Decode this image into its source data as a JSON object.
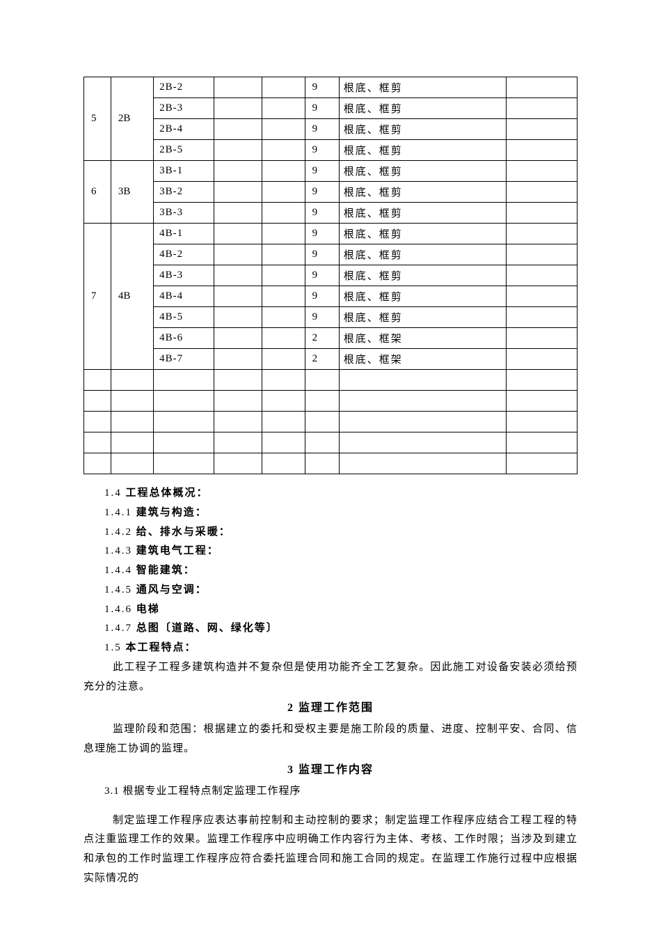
{
  "table": {
    "groups": [
      {
        "idx": "5",
        "group": "2B",
        "rows": [
          {
            "code": "2B-2",
            "num": "9",
            "desc": "根底、框剪"
          },
          {
            "code": "2B-3",
            "num": "9",
            "desc": "根底、框剪"
          },
          {
            "code": "2B-4",
            "num": "9",
            "desc": "根底、框剪"
          },
          {
            "code": "2B-5",
            "num": "9",
            "desc": "根底、框剪"
          }
        ]
      },
      {
        "idx": "6",
        "group": "3B",
        "rows": [
          {
            "code": "3B-1",
            "num": "9",
            "desc": "根底、框剪"
          },
          {
            "code": "3B-2",
            "num": "9",
            "desc": "根底、框剪"
          },
          {
            "code": "3B-3",
            "num": "9",
            "desc": "根底、框剪"
          }
        ]
      },
      {
        "idx": "7",
        "group": "4B",
        "rows": [
          {
            "code": "4B-1",
            "num": "9",
            "desc": "根底、框剪"
          },
          {
            "code": "4B-2",
            "num": "9",
            "desc": "根底、框剪"
          },
          {
            "code": "4B-3",
            "num": "9",
            "desc": "根底、框剪"
          },
          {
            "code": "4B-4",
            "num": "9",
            "desc": "根底、框剪"
          },
          {
            "code": "4B-5",
            "num": "9",
            "desc": "根底、框剪"
          },
          {
            "code": "4B-6",
            "num": "2",
            "desc": "根底、框架"
          },
          {
            "code": "4B-7",
            "num": "2",
            "desc": "根底、框架"
          }
        ]
      }
    ],
    "empty_rows": 5
  },
  "sections": {
    "s14": {
      "num": "1.4",
      "title": "工程总体概况："
    },
    "s141": {
      "num": "1.4.1",
      "title": "建筑与构造："
    },
    "s142": {
      "num": "1.4.2",
      "title": "给、排水与采暖："
    },
    "s143": {
      "num": "1.4.3",
      "title": "建筑电气工程："
    },
    "s144": {
      "num": "1.4.4",
      "title": "智能建筑："
    },
    "s145": {
      "num": "1.4.5",
      "title": "通风与空调："
    },
    "s146": {
      "num": "1.4.6",
      "title": "电梯"
    },
    "s147": {
      "num": "1.4.7",
      "title": "总图〔道路、网、绿化等〕"
    },
    "s15": {
      "num": "1.5",
      "title": "本工程特点："
    },
    "p15": "此工程子工程多建筑构造并不复杂但是使用功能齐全工艺复杂。因此施工对设备安装必须给预充分的注意。",
    "h2": "2  监理工作范围",
    "p2": "监理阶段和范围：根据建立的委托和受权主要是施工阶段的质量、进度、控制平安、合同、信息理施工协调的监理。",
    "h3": "3  监理工作内容",
    "s31": "3.1  根据专业工程特点制定监理工作程序",
    "p31": "制定监理工作程序应表达事前控制和主动控制的要求；制定监理工作程序应结合工程工程的特点注重监理工作的效果。监理工作程序中应明确工作内容行为主体、考核、工作时限；当涉及到建立和承包的工作时监理工作程序应符合委托监理合同和施工合同的规定。在监理工作施行过程中应根据实际情况的"
  }
}
